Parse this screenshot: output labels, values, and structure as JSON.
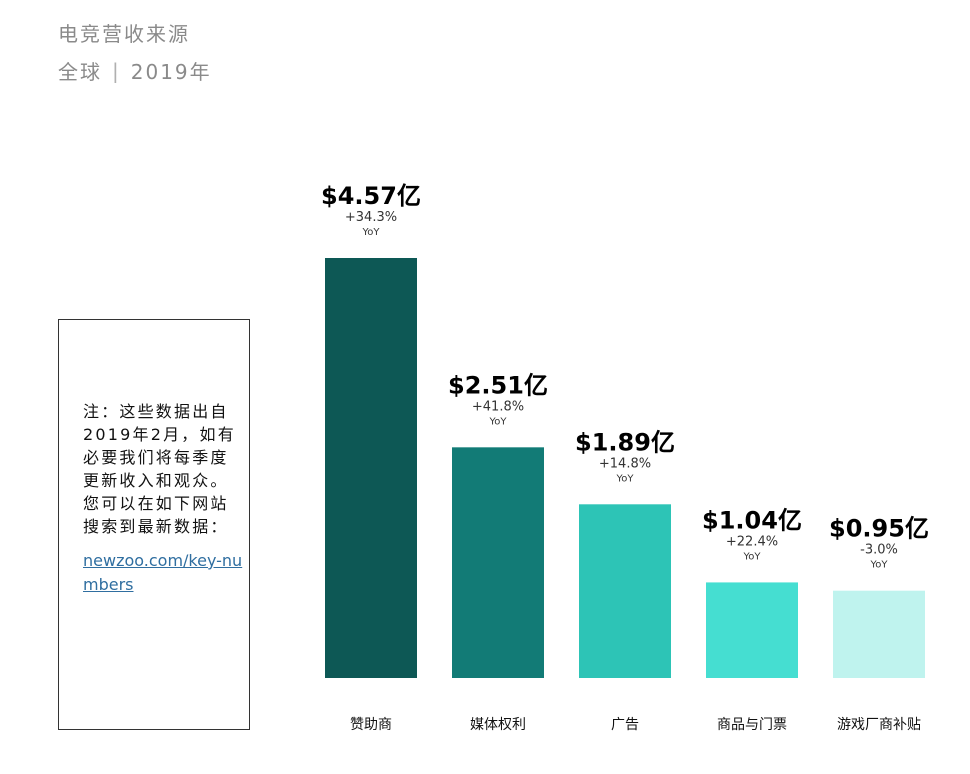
{
  "header": {
    "title": "电竞营收来源",
    "region": "全球",
    "separator": "|",
    "year": "2019年"
  },
  "note": {
    "text": "注：这些数据出自2019年2月，如有必要我们将每季度更新收入和观众。您可以在如下网站搜索到最新数据：",
    "link": "newzoo.com/key-numbers"
  },
  "colors": {
    "bars": [
      "#0d5855",
      "#127b76",
      "#2dc4b6",
      "#45ded1",
      "#bff3ee"
    ],
    "label_text": "#000000",
    "growth_text": "#333333"
  },
  "chart_data": {
    "type": "bar",
    "title": "电竞营收来源",
    "subtitle": "全球 | 2019年",
    "unit": "亿美元",
    "categories": [
      "赞助商",
      "媒体权利",
      "广告",
      "商品与门票",
      "游戏厂商补贴"
    ],
    "values": [
      4.57,
      2.51,
      1.89,
      1.04,
      0.95
    ],
    "value_labels": [
      "$4.57亿",
      "$2.51亿",
      "$1.89亿",
      "$1.04亿",
      "$0.95亿"
    ],
    "growth": [
      "+34.3%",
      "+41.8%",
      "+14.8%",
      "+22.4%",
      "-3.0%"
    ],
    "growth_label": "YoY",
    "ylim": [
      0,
      4.57
    ],
    "grid": false,
    "legend": "none"
  }
}
